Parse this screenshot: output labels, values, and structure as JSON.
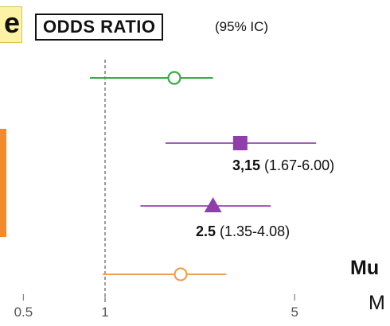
{
  "header": {
    "cut_letter": "e",
    "title": "ODDS RATIO",
    "ci_note": "(95% IC)"
  },
  "cut_text": {
    "line1": "Mu",
    "line2": "M"
  },
  "colors": {
    "green": "#3aa84a",
    "purple": "#a25bbf",
    "purple_marker": "#8e3fa8",
    "orange": "#f0a050",
    "reference_line": "#666666",
    "tick": "#888888"
  },
  "chart_data": {
    "type": "forest",
    "title": "ODDS RATIO",
    "subtitle": "(95% IC)",
    "x_scale": "log",
    "reference_value": 1,
    "xticks": [
      {
        "value": 0.5,
        "label": "0.5"
      },
      {
        "value": 1,
        "label": "1"
      },
      {
        "value": 5,
        "label": "5"
      }
    ],
    "rows": [
      {
        "color": "green",
        "marker": "open-circle",
        "or": 1.8,
        "lo": 0.88,
        "hi": 2.5,
        "label_value": "",
        "label_ci": ""
      },
      {
        "color": "purple",
        "marker": "square",
        "or": 3.15,
        "lo": 1.67,
        "hi": 6.0,
        "label_value": "3,15",
        "label_ci": "(1.67-6.00)"
      },
      {
        "color": "purple",
        "marker": "triangle",
        "or": 2.5,
        "lo": 1.35,
        "hi": 4.08,
        "label_value": "2.5",
        "label_ci": "(1.35-4.08)"
      },
      {
        "color": "orange",
        "marker": "open-circle",
        "or": 1.9,
        "lo": 0.98,
        "hi": 2.8,
        "label_value": "",
        "label_ci": ""
      }
    ]
  }
}
